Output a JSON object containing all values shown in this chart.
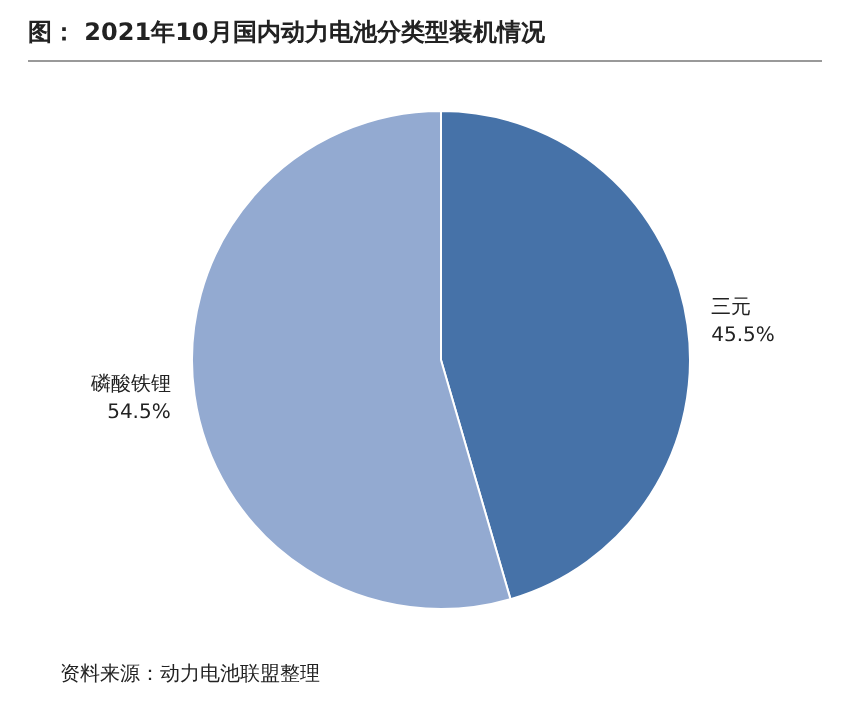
{
  "chart_data": {
    "type": "pie",
    "title": "图： 2021年10月国内动力电池分类型装机情况",
    "categories": [
      "三元",
      "磷酸铁锂"
    ],
    "values": [
      45.5,
      54.5
    ],
    "colors": [
      "#4672a8",
      "#93aad1"
    ],
    "value_labels": [
      "45.5%",
      "54.5%"
    ],
    "legend": false,
    "annotations": [
      "资料来源：动力电池联盟整理"
    ]
  }
}
